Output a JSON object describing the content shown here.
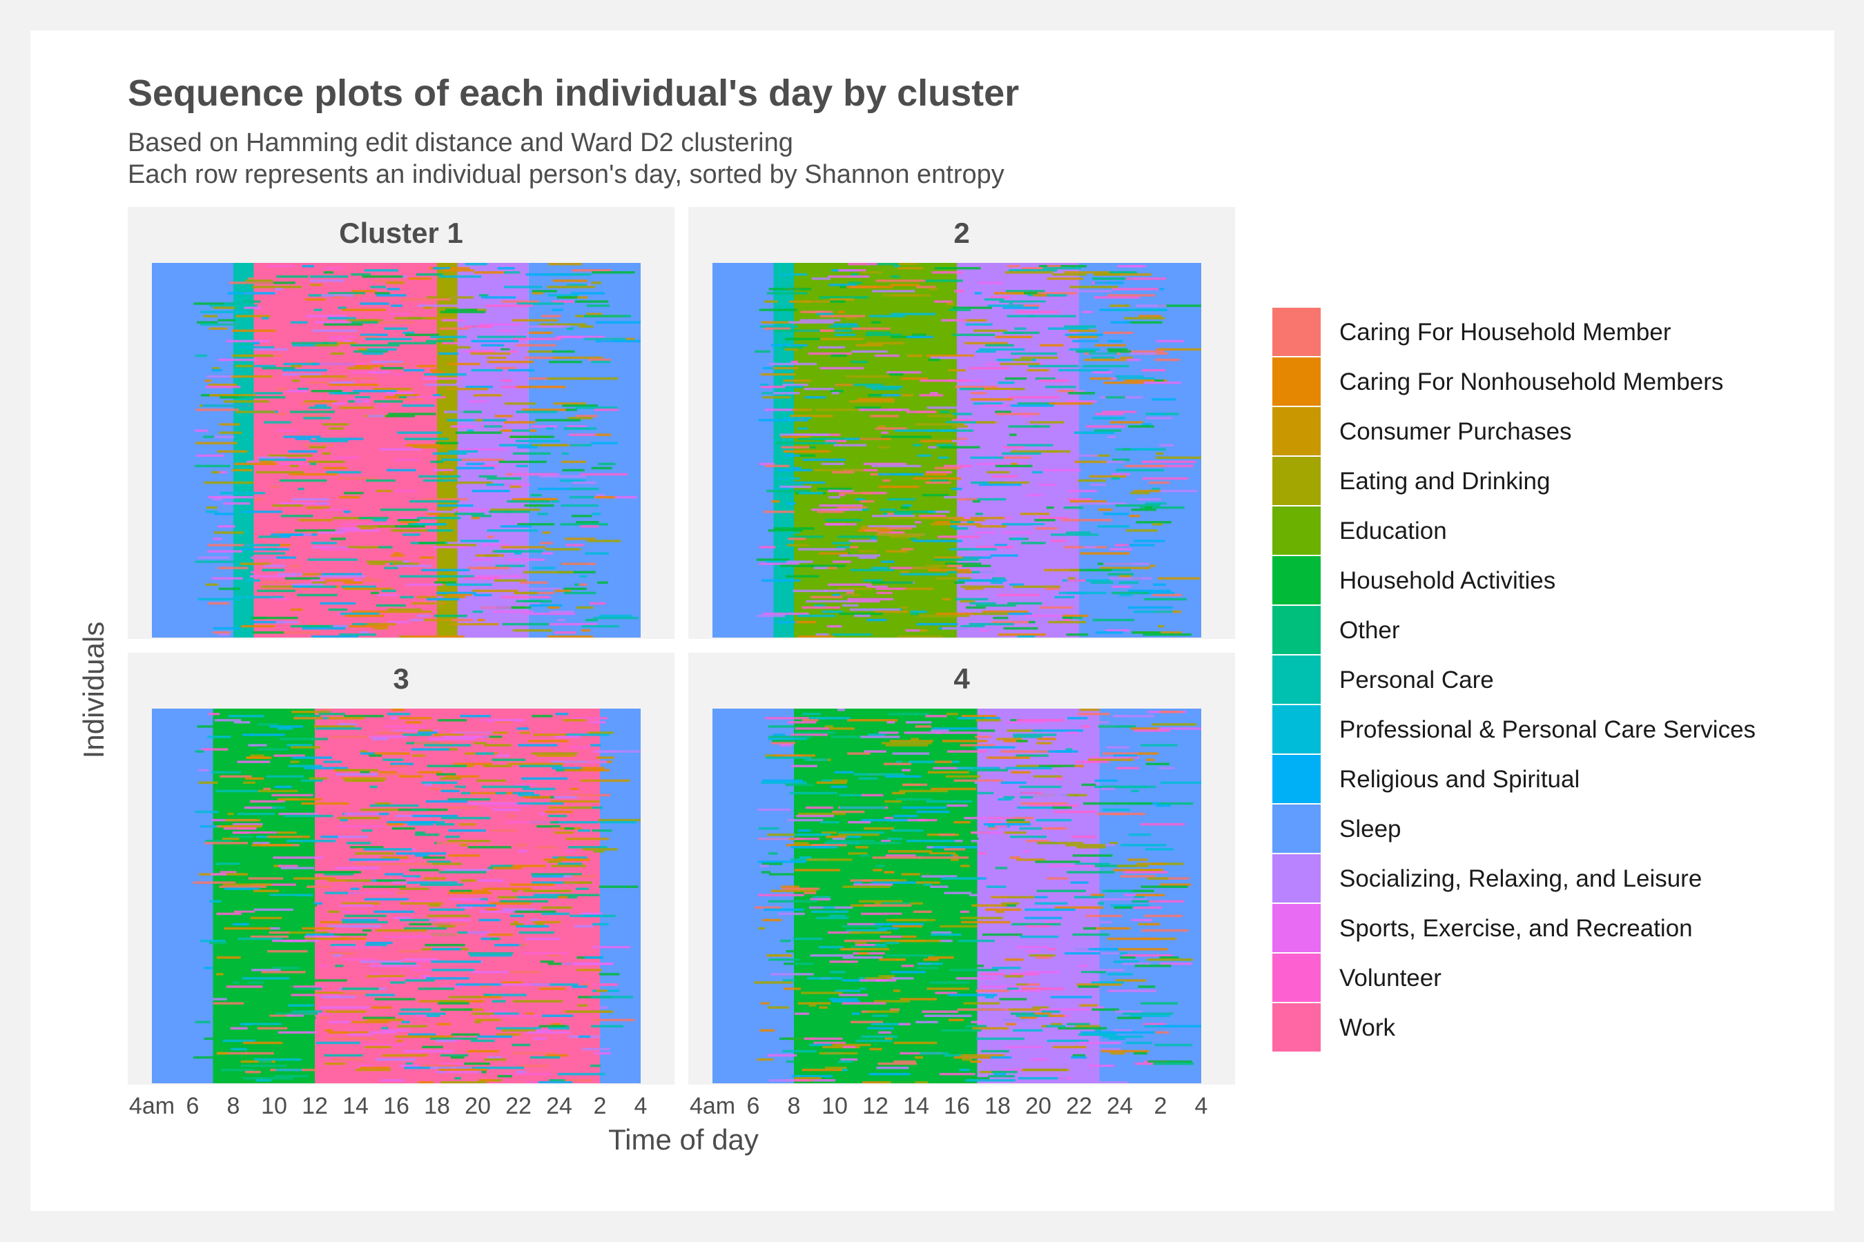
{
  "title": "Sequence plots of each individual's day by cluster",
  "subtitle_lines": [
    "Based on Hamming edit distance and Ward D2 clustering",
    "Each row represents an individual person's day, sorted by Shannon entropy"
  ],
  "colors": {
    "Caring For Household Member": "#F8766D",
    "Caring For Nonhousehold Members": "#E58700",
    "Consumer Purchases": "#C99800",
    "Eating and Drinking": "#A3A500",
    "Education": "#6BB100",
    "Household Activities": "#00BA38",
    "Other": "#00BF7D",
    "Personal Care": "#00C0AF",
    "Professional & Personal Care Services": "#00BCD8",
    "Religious and Spiritual": "#00B0F6",
    "Sleep": "#619CFF",
    "Socializing, Relaxing, and Leisure": "#B983FF",
    "Sports, Exercise, and Recreation": "#E76BF3",
    "Volunteer": "#FD61D1",
    "Work": "#FF67A4"
  },
  "chart_data": {
    "type": "heatmap",
    "title": "Sequence plots of each individual's day by cluster",
    "xlabel": "Time of day",
    "ylabel": "Individuals",
    "x_ticks": [
      "4am",
      "6",
      "8",
      "10",
      "12",
      "14",
      "16",
      "18",
      "20",
      "22",
      "24",
      "2",
      "4"
    ],
    "x_range_hours": [
      4,
      28
    ],
    "legend_position": "right",
    "legend": [
      "Caring For Household Member",
      "Caring For Nonhousehold Members",
      "Consumer Purchases",
      "Eating and Drinking",
      "Education",
      "Household Activities",
      "Other",
      "Personal Care",
      "Professional & Personal Care Services",
      "Religious and Spiritual",
      "Sleep",
      "Socializing, Relaxing, and Leisure",
      "Sports, Exercise, and Recreation",
      "Volunteer",
      "Work"
    ],
    "panels": [
      {
        "label": "Cluster 1",
        "dominant_by_hour": [
          {
            "from": 4,
            "to": 8,
            "state": "Sleep"
          },
          {
            "from": 8,
            "to": 9,
            "state": "Personal Care"
          },
          {
            "from": 9,
            "to": 18,
            "state": "Work"
          },
          {
            "from": 18,
            "to": 19,
            "state": "Eating and Drinking"
          },
          {
            "from": 19,
            "to": 22.5,
            "state": "Socializing, Relaxing, and Leisure"
          },
          {
            "from": 22.5,
            "to": 28,
            "state": "Sleep"
          }
        ]
      },
      {
        "label": "2",
        "dominant_by_hour": [
          {
            "from": 4,
            "to": 7,
            "state": "Sleep"
          },
          {
            "from": 7,
            "to": 8,
            "state": "Personal Care"
          },
          {
            "from": 8,
            "to": 16,
            "state": "Education"
          },
          {
            "from": 16,
            "to": 22,
            "state": "Socializing, Relaxing, and Leisure"
          },
          {
            "from": 22,
            "to": 28,
            "state": "Sleep"
          }
        ]
      },
      {
        "label": "3",
        "dominant_by_hour": [
          {
            "from": 4,
            "to": 7,
            "state": "Sleep"
          },
          {
            "from": 7,
            "to": 12,
            "state": "Household Activities"
          },
          {
            "from": 12,
            "to": 26,
            "state": "Work"
          },
          {
            "from": 26,
            "to": 28,
            "state": "Sleep"
          }
        ]
      },
      {
        "label": "4",
        "dominant_by_hour": [
          {
            "from": 4,
            "to": 8,
            "state": "Sleep"
          },
          {
            "from": 8,
            "to": 17,
            "state": "Household Activities"
          },
          {
            "from": 17,
            "to": 23,
            "state": "Socializing, Relaxing, and Leisure"
          },
          {
            "from": 23,
            "to": 28,
            "state": "Sleep"
          }
        ]
      }
    ]
  }
}
